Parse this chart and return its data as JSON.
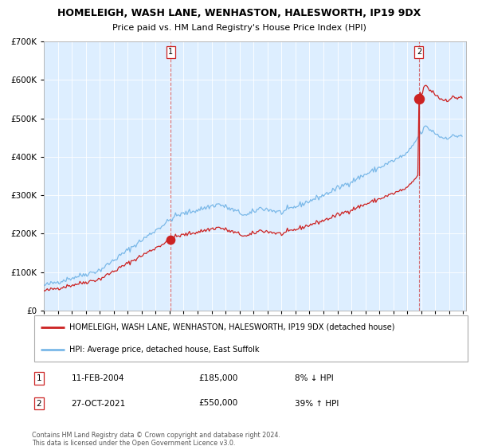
{
  "title": "HOMELEIGH, WASH LANE, WENHASTON, HALESWORTH, IP19 9DX",
  "subtitle": "Price paid vs. HM Land Registry's House Price Index (HPI)",
  "legend_line1": "HOMELEIGH, WASH LANE, WENHASTON, HALESWORTH, IP19 9DX (detached house)",
  "legend_line2": "HPI: Average price, detached house, East Suffolk",
  "transaction1_date": "11-FEB-2004",
  "transaction1_price": 185000,
  "transaction1_note": "8% ↓ HPI",
  "transaction2_date": "27-OCT-2021",
  "transaction2_price": 550000,
  "transaction2_note": "39% ↑ HPI",
  "footer": "Contains HM Land Registry data © Crown copyright and database right 2024.\nThis data is licensed under the Open Government Licence v3.0.",
  "hpi_color": "#7ab8e8",
  "price_color": "#cc2222",
  "bg_color": "#ddeeff",
  "ylim": [
    0,
    700000
  ],
  "year_start": 1995,
  "year_end": 2025,
  "t1_year": 2004.08,
  "t2_year": 2021.83,
  "t1_price": 185000,
  "t2_price": 550000,
  "t1_below_hpi": 0.08,
  "t2_above_hpi": 0.39
}
